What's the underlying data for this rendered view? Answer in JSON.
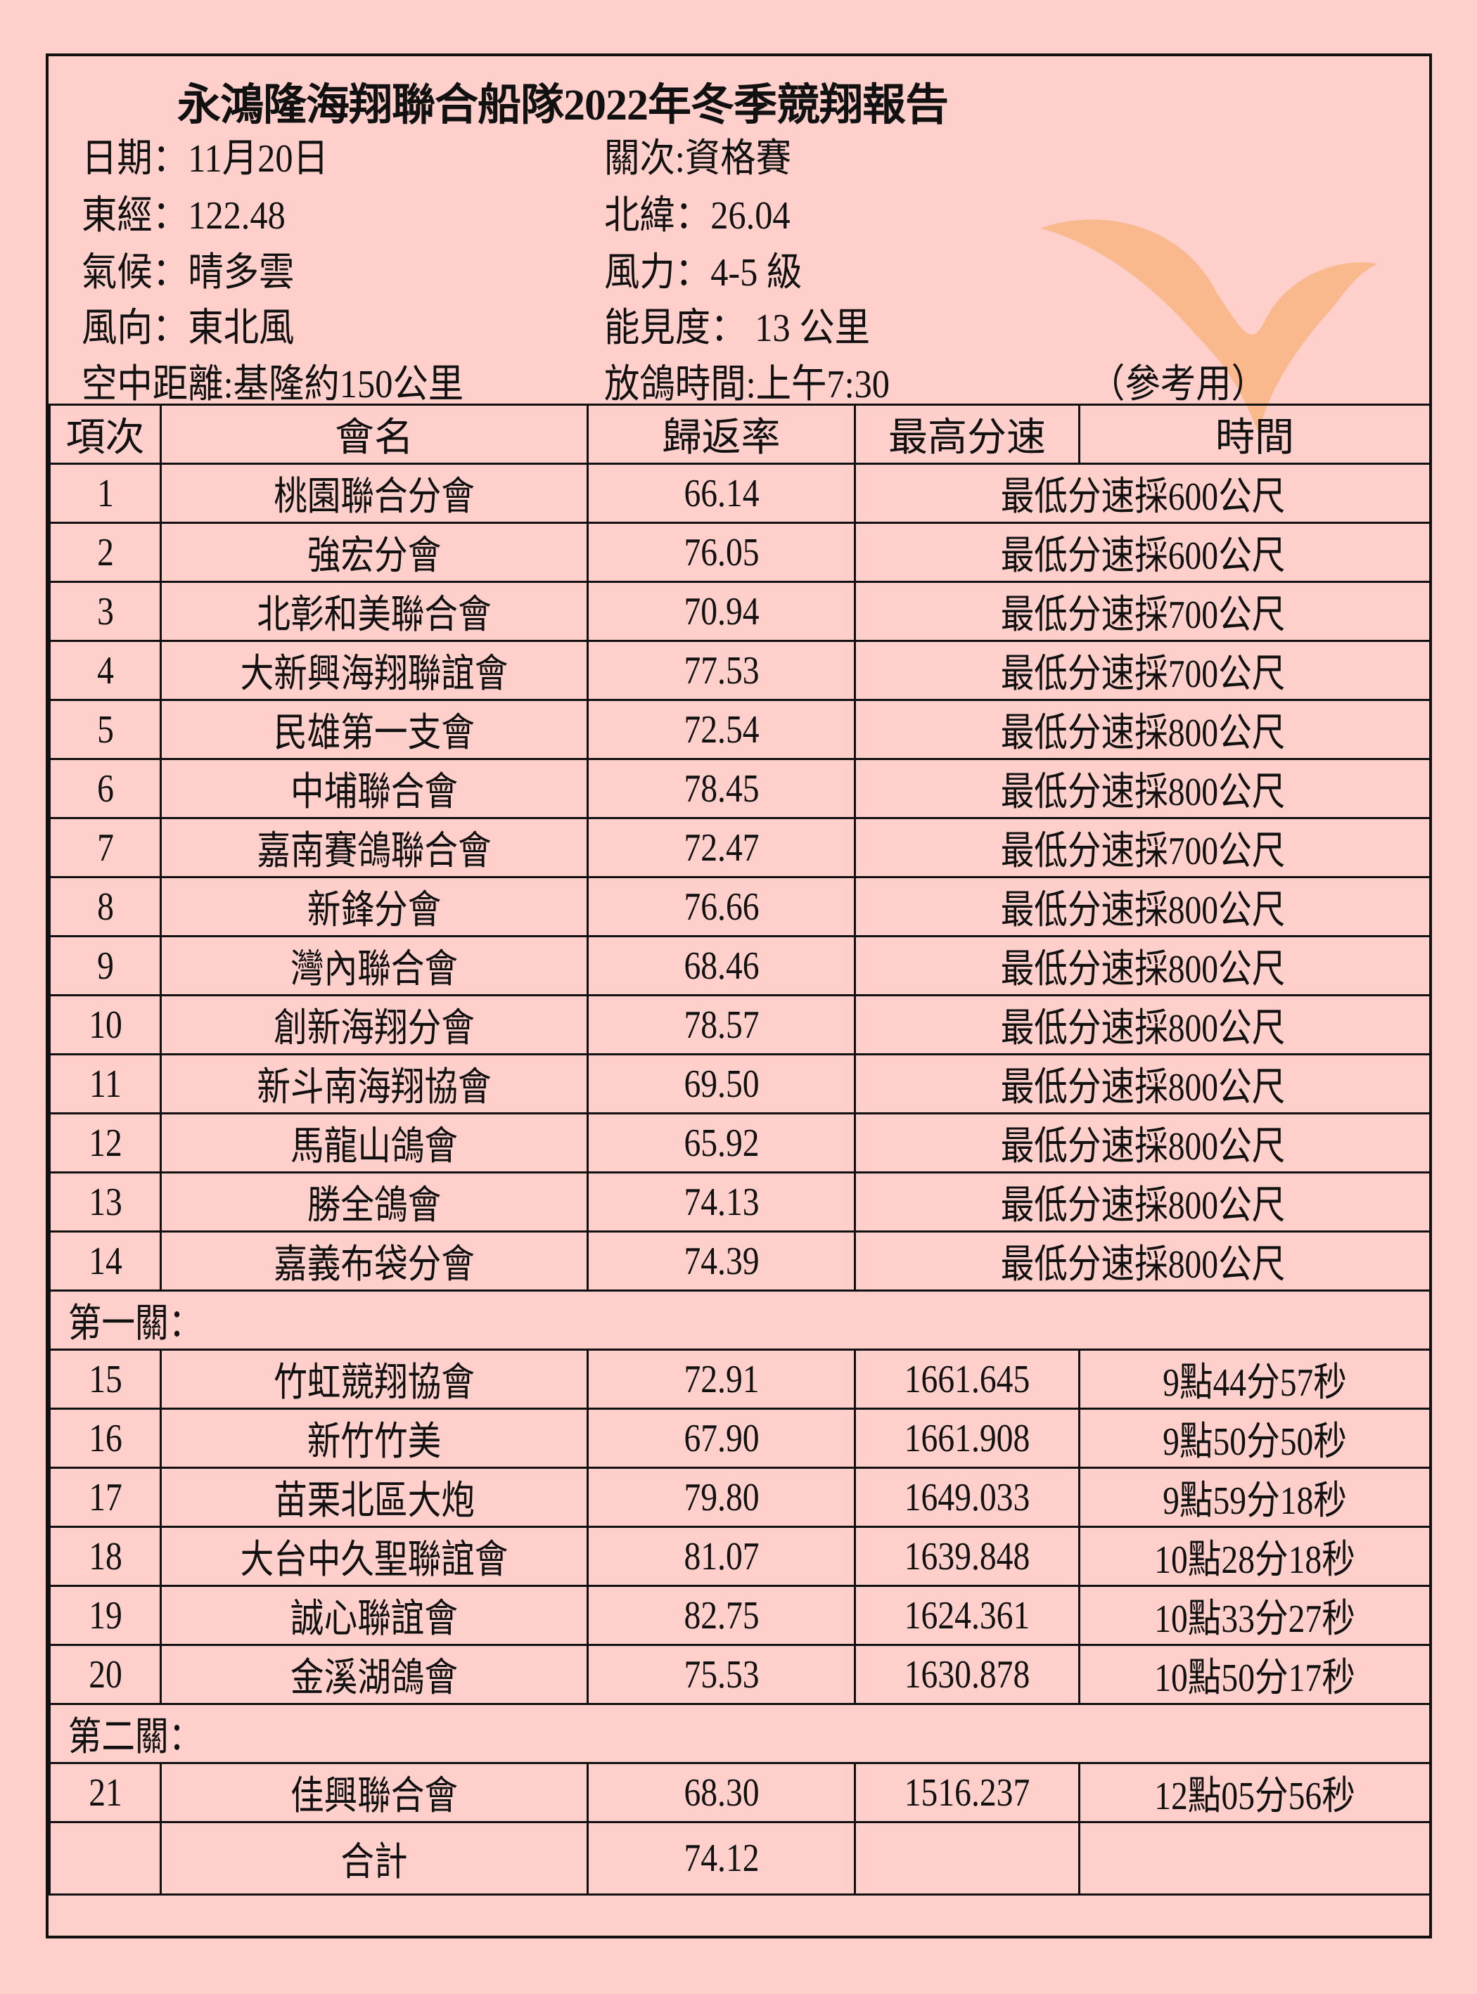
{
  "title": "永鴻隆海翔聯合船隊2022年冬季競翔報告",
  "info": {
    "date": "日期：11月20日",
    "stage": "關次:資格賽",
    "longitude": "東經：122.48",
    "latitude": "北緯：26.04",
    "weather": "氣候：晴多雲",
    "wind_force": "風力：4-5 級",
    "wind_dir": "風向：東北風",
    "visibility": "能見度： 13 公里",
    "distance": "空中距離:基隆約150公里",
    "release_time": "放鴿時間:上午7:30",
    "note": "（參考用）"
  },
  "watermark": {
    "icon": "dove-icon",
    "color": "#f5b67a"
  },
  "columns": [
    "項次",
    "會名",
    "歸返率",
    "最高分速",
    "時間"
  ],
  "rows_qual": [
    {
      "no": "1",
      "name": "桃園聯合分會",
      "rate": "66.14",
      "note": "最低分速採600公尺"
    },
    {
      "no": "2",
      "name": "強宏分會",
      "rate": "76.05",
      "note": "最低分速採600公尺"
    },
    {
      "no": "3",
      "name": "北彰和美聯合會",
      "rate": "70.94",
      "note": "最低分速採700公尺"
    },
    {
      "no": "4",
      "name": "大新興海翔聯誼會",
      "rate": "77.53",
      "note": "最低分速採700公尺"
    },
    {
      "no": "5",
      "name": "民雄第一支會",
      "rate": "72.54",
      "note": "最低分速採800公尺"
    },
    {
      "no": "6",
      "name": "中埔聯合會",
      "rate": "78.45",
      "note": "最低分速採800公尺"
    },
    {
      "no": "7",
      "name": "嘉南賽鴿聯合會",
      "rate": "72.47",
      "note": "最低分速採700公尺"
    },
    {
      "no": "8",
      "name": "新鋒分會",
      "rate": "76.66",
      "note": "最低分速採800公尺"
    },
    {
      "no": "9",
      "name": "灣內聯合會",
      "rate": "68.46",
      "note": "最低分速採800公尺"
    },
    {
      "no": "10",
      "name": "創新海翔分會",
      "rate": "78.57",
      "note": "最低分速採800公尺"
    },
    {
      "no": "11",
      "name": "新斗南海翔協會",
      "rate": "69.50",
      "note": "最低分速採800公尺"
    },
    {
      "no": "12",
      "name": "馬龍山鴿會",
      "rate": "65.92",
      "note": "最低分速採800公尺"
    },
    {
      "no": "13",
      "name": "勝全鴿會",
      "rate": "74.13",
      "note": "最低分速採800公尺"
    },
    {
      "no": "14",
      "name": "嘉義布袋分會",
      "rate": "74.39",
      "note": "最低分速採800公尺"
    }
  ],
  "section1": "第一關：",
  "rows_s1": [
    {
      "no": "15",
      "name": "竹虹競翔協會",
      "rate": "72.91",
      "speed": "1661.645",
      "time": "9點44分57秒"
    },
    {
      "no": "16",
      "name": "新竹竹美",
      "rate": "67.90",
      "speed": "1661.908",
      "time": "9點50分50秒"
    },
    {
      "no": "17",
      "name": "苗栗北區大炮",
      "rate": "79.80",
      "speed": "1649.033",
      "time": "9點59分18秒"
    },
    {
      "no": "18",
      "name": "大台中久聖聯誼會",
      "rate": "81.07",
      "speed": "1639.848",
      "time": "10點28分18秒"
    },
    {
      "no": "19",
      "name": "誠心聯誼會",
      "rate": "82.75",
      "speed": "1624.361",
      "time": "10點33分27秒"
    },
    {
      "no": "20",
      "name": "金溪湖鴿會",
      "rate": "75.53",
      "speed": "1630.878",
      "time": "10點50分17秒"
    }
  ],
  "section2": "第二關：",
  "rows_s2": [
    {
      "no": "21",
      "name": "佳興聯合會",
      "rate": "68.30",
      "speed": "1516.237",
      "time": "12點05分56秒"
    }
  ],
  "total": {
    "label": "合計",
    "rate": "74.12"
  }
}
